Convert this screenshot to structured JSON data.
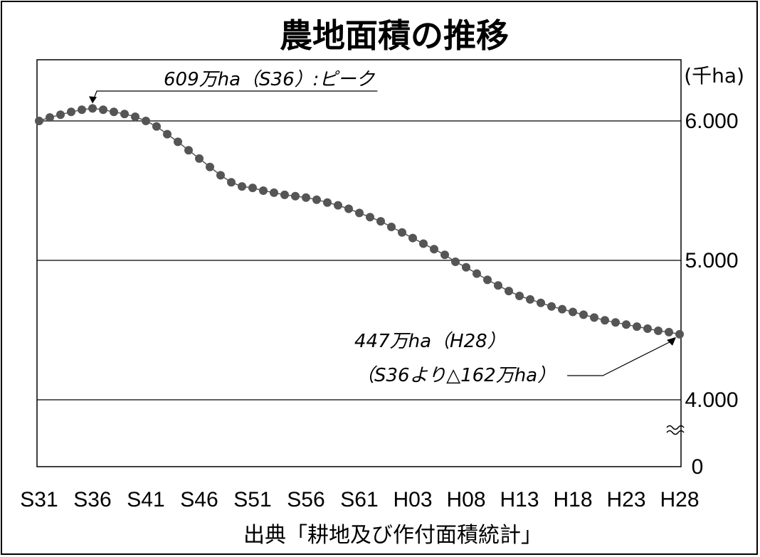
{
  "chart_data": {
    "type": "line",
    "title": "農地面積の推移",
    "ylabel": "(千ha)",
    "y_ticks": [
      "6.000",
      "5.000",
      "4.000",
      "0"
    ],
    "y_tick_values": [
      6000,
      5000,
      4000,
      0
    ],
    "ylim": [
      3500,
      6500
    ],
    "axis_break": true,
    "grid": true,
    "categories": [
      "S31",
      "S32",
      "S33",
      "S34",
      "S35",
      "S36",
      "S37",
      "S38",
      "S39",
      "S40",
      "S41",
      "S42",
      "S43",
      "S44",
      "S45",
      "S46",
      "S47",
      "S48",
      "S49",
      "S50",
      "S51",
      "S52",
      "S53",
      "S54",
      "S55",
      "S56",
      "S57",
      "S58",
      "S59",
      "S60",
      "S61",
      "S62",
      "S63",
      "H01",
      "H02",
      "H03",
      "H04",
      "H05",
      "H06",
      "H07",
      "H08",
      "H09",
      "H10",
      "H11",
      "H12",
      "H13",
      "H14",
      "H15",
      "H16",
      "H17",
      "H18",
      "H19",
      "H20",
      "H21",
      "H22",
      "H23",
      "H24",
      "H25",
      "H26",
      "H27",
      "H28"
    ],
    "x_tick_labels": [
      "S31",
      "S36",
      "S41",
      "S46",
      "S51",
      "S56",
      "S61",
      "H03",
      "H08",
      "H13",
      "H18",
      "H23",
      "H28"
    ],
    "series": [
      {
        "values": [
          6000,
          6025,
          6045,
          6065,
          6080,
          6090,
          6080,
          6065,
          6050,
          6030,
          6000,
          5960,
          5905,
          5850,
          5790,
          5730,
          5670,
          5610,
          5560,
          5530,
          5520,
          5500,
          5485,
          5470,
          5460,
          5450,
          5435,
          5415,
          5395,
          5370,
          5340,
          5310,
          5280,
          5240,
          5200,
          5160,
          5120,
          5080,
          5040,
          4990,
          4950,
          4905,
          4860,
          4820,
          4780,
          4745,
          4720,
          4695,
          4670,
          4650,
          4630,
          4610,
          4590,
          4570,
          4555,
          4540,
          4525,
          4510,
          4495,
          4485,
          4470
        ]
      }
    ],
    "color": "#555555",
    "annotations": [
      {
        "text": "609万ha（S36）:ピーク",
        "x": "S36",
        "y": 6090
      },
      {
        "lines": [
          "447万ha（H28）",
          "（S36より△162万ha）"
        ],
        "x": "H28",
        "y": 4470
      }
    ],
    "source": "出典「耕地及び作付面積統計」"
  }
}
